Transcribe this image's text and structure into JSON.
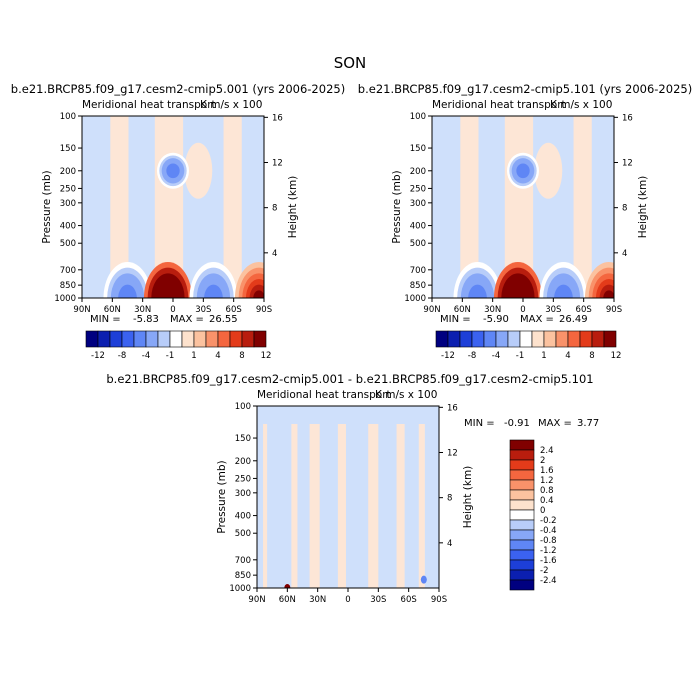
{
  "figure": {
    "season": "SON"
  },
  "panels": [
    {
      "title": "b.e21.BRCP85.f09_g17.cesm2-cmip5.001 (yrs 2006-2025)",
      "subtitle": "Meridional heat transport",
      "units": "K m/s x 100",
      "min_label": "MIN =",
      "min_value": "-5.83",
      "max_label": "MAX =",
      "max_value": "26.55"
    },
    {
      "title": "b.e21.BRCP85.f09_g17.cesm2-cmip5.101 (yrs 2006-2025)",
      "subtitle": "Meridional heat transport",
      "units": "K m/s x 100",
      "min_label": "MIN =",
      "min_value": "-5.90",
      "max_label": "MAX =",
      "max_value": "26.49"
    },
    {
      "title": "b.e21.BRCP85.f09_g17.cesm2-cmip5.001 - b.e21.BRCP85.f09_g17.cesm2-cmip5.101",
      "subtitle": "Meridional heat transport",
      "units": "K m/s x 100",
      "min_label": "MIN =",
      "min_value": "-0.91",
      "max_label": "MAX =",
      "max_value": "3.77"
    }
  ],
  "chart_data": [
    {
      "type": "heatmap",
      "title": "b.e21.BRCP85.f09_g17.cesm2-cmip5.001 (yrs 2006-2025)",
      "subtitle": "Meridional heat transport",
      "xlabel": "",
      "ylabel": "Pressure (mb)",
      "y2label": "Height (km)",
      "x_ticks": [
        "90N",
        "60N",
        "30N",
        "0",
        "30S",
        "60S",
        "90S"
      ],
      "y_ticks": [
        "100",
        "150",
        "200",
        "250",
        "300",
        "400",
        "500",
        "700",
        "850",
        "1000"
      ],
      "y2_ticks": [
        "16",
        "12",
        "8",
        "4"
      ],
      "y_scale": "log",
      "xlim": [
        90,
        -90
      ],
      "ylim": [
        1000,
        100
      ],
      "min": -5.83,
      "max": 26.55,
      "levels": [
        -12,
        -10,
        -8,
        -6,
        -4,
        -2,
        -1,
        0,
        1,
        2,
        4,
        6,
        8,
        10,
        12
      ],
      "colorbar_ticks": [
        "-12",
        "-8",
        "-4",
        "-1",
        "1",
        "4",
        "8",
        "12"
      ],
      "features": [
        {
          "lat": 0,
          "p": 200,
          "value": -5.5
        },
        {
          "lat": 45,
          "p": 1000,
          "value": -5
        },
        {
          "lat": 5,
          "p": 1000,
          "value": 26
        },
        {
          "lat": -40,
          "p": 1000,
          "value": -5
        },
        {
          "lat": -85,
          "p": 1000,
          "value": 12
        }
      ]
    },
    {
      "type": "heatmap",
      "title": "b.e21.BRCP85.f09_g17.cesm2-cmip5.101 (yrs 2006-2025)",
      "subtitle": "Meridional heat transport",
      "xlabel": "",
      "ylabel": "Pressure (mb)",
      "y2label": "Height (km)",
      "x_ticks": [
        "90N",
        "60N",
        "30N",
        "0",
        "30S",
        "60S",
        "90S"
      ],
      "y_ticks": [
        "100",
        "150",
        "200",
        "250",
        "300",
        "400",
        "500",
        "700",
        "850",
        "1000"
      ],
      "y2_ticks": [
        "16",
        "12",
        "8",
        "4"
      ],
      "y_scale": "log",
      "xlim": [
        90,
        -90
      ],
      "ylim": [
        1000,
        100
      ],
      "min": -5.9,
      "max": 26.49,
      "levels": [
        -12,
        -10,
        -8,
        -6,
        -4,
        -2,
        -1,
        0,
        1,
        2,
        4,
        6,
        8,
        10,
        12
      ],
      "colorbar_ticks": [
        "-12",
        "-8",
        "-4",
        "-1",
        "1",
        "4",
        "8",
        "12"
      ],
      "features": [
        {
          "lat": 0,
          "p": 200,
          "value": -5.6
        },
        {
          "lat": 45,
          "p": 1000,
          "value": -5
        },
        {
          "lat": 5,
          "p": 1000,
          "value": 26
        },
        {
          "lat": -40,
          "p": 1000,
          "value": -5
        },
        {
          "lat": -85,
          "p": 1000,
          "value": 12
        }
      ]
    },
    {
      "type": "heatmap",
      "title": "b.e21.BRCP85.f09_g17.cesm2-cmip5.001 - b.e21.BRCP85.f09_g17.cesm2-cmip5.101",
      "subtitle": "Meridional heat transport",
      "xlabel": "",
      "ylabel": "Pressure (mb)",
      "y2label": "Height (km)",
      "x_ticks": [
        "90N",
        "60N",
        "30N",
        "0",
        "30S",
        "60S",
        "90S"
      ],
      "y_ticks": [
        "100",
        "150",
        "200",
        "250",
        "300",
        "400",
        "500",
        "700",
        "850",
        "1000"
      ],
      "y2_ticks": [
        "16",
        "12",
        "8",
        "4"
      ],
      "y_scale": "log",
      "xlim": [
        90,
        -90
      ],
      "ylim": [
        1000,
        100
      ],
      "min": -0.91,
      "max": 3.77,
      "levels": [
        -2.4,
        -2,
        -1.6,
        -1.2,
        -0.8,
        -0.4,
        -0.2,
        0,
        0.4,
        0.8,
        1.2,
        1.6,
        2,
        2.4
      ],
      "colorbar_ticks": [
        "2.4",
        "2",
        "1.6",
        "1.2",
        "0.8",
        "0.4",
        "0",
        "-0.2",
        "-0.4",
        "-0.8",
        "-1.2",
        "-1.6",
        "-2",
        "-2.4"
      ],
      "features": [
        {
          "lat": 60,
          "p": 1000,
          "value": 3.5
        },
        {
          "lat": -75,
          "p": 900,
          "value": -0.8
        }
      ]
    }
  ],
  "colors": {
    "palette_main": [
      "#000080",
      "#0b1fb0",
      "#1d3fd8",
      "#3b62f0",
      "#5f86f5",
      "#87a7f7",
      "#b8cdf9",
      "#ffffff",
      "#fde2cd",
      "#fbc29f",
      "#f9926a",
      "#f4663f",
      "#e33b1a",
      "#b81d0e",
      "#800000"
    ],
    "palette_diff": [
      "#000080",
      "#0b1fb0",
      "#1d3fd8",
      "#3b62f0",
      "#5f86f5",
      "#87a7f7",
      "#b8cdf9",
      "#ffffff",
      "#fde2cd",
      "#fbc29f",
      "#f9926a",
      "#f4663f",
      "#e33b1a",
      "#b81d0e",
      "#800000"
    ],
    "light_blue": "#cfe0fb",
    "light_peach": "#fde6d6"
  }
}
